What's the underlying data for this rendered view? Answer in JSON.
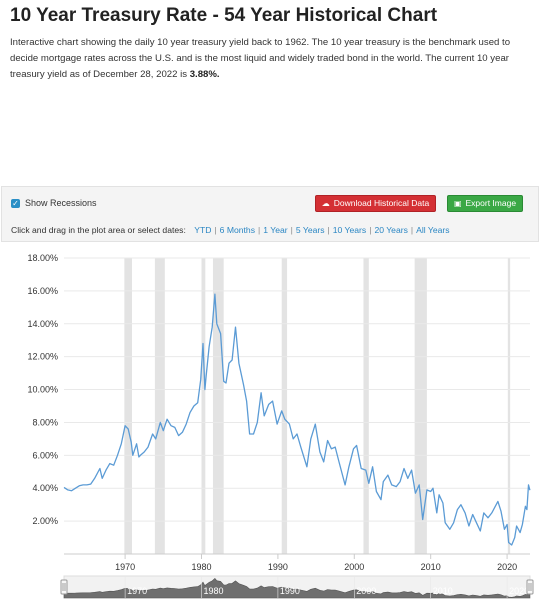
{
  "page": {
    "title": "10 Year Treasury Rate - 54 Year Historical Chart",
    "intro_text": "Interactive chart showing the daily 10 year treasury yield back to 1962. The 10 year treasury is the benchmark used to decide mortgage rates across the U.S. and is the most liquid and widely traded bond in the world. The current 10 year treasury yield as of December 28, 2022 is ",
    "current_value": "3.88%.",
    "colors": {
      "title": "#222222",
      "link": "#2a86c3",
      "download_button": "#d43034",
      "export_button": "#3aa845",
      "checkbox": "#2a8fc6",
      "series_line": "#5b9bd5",
      "recession_band": "#e3e3e3"
    }
  },
  "toolbar": {
    "show_recessions_label": "Show Recessions",
    "show_recessions_checked": true,
    "checkbox_icon": "check-icon",
    "download_label": "Download Historical Data",
    "download_icon": "cloud-download-icon",
    "export_label": "Export Image",
    "export_icon": "image-icon",
    "date_prompt": "Click and drag in the plot area or select dates:",
    "ranges": [
      "YTD",
      "6 Months",
      "1 Year",
      "5 Years",
      "10 Years",
      "20 Years",
      "All Years"
    ]
  },
  "chart_data": {
    "type": "line",
    "title": "",
    "xlabel": "",
    "ylabel": "",
    "ylim": [
      0,
      18
    ],
    "y_ticks": [
      2,
      4,
      6,
      8,
      10,
      12,
      14,
      16,
      18
    ],
    "y_tick_labels": [
      "2.00%",
      "4.00%",
      "6.00%",
      "8.00%",
      "10.00%",
      "12.00%",
      "14.00%",
      "16.00%",
      "18.00%"
    ],
    "xlim": [
      1962,
      2023
    ],
    "x_ticks": [
      1970,
      1980,
      1990,
      2000,
      2010,
      2020
    ],
    "x_tick_labels": [
      "1970",
      "1980",
      "1990",
      "2000",
      "2010",
      "2020"
    ],
    "grid": "horizontal",
    "legend": "none",
    "recessions": [
      [
        1969.9,
        1970.9
      ],
      [
        1973.9,
        1975.2
      ],
      [
        1980.0,
        1980.5
      ],
      [
        1981.5,
        1982.9
      ],
      [
        1990.5,
        1991.2
      ],
      [
        2001.2,
        2001.9
      ],
      [
        2007.9,
        2009.5
      ],
      [
        2020.1,
        2020.4
      ]
    ],
    "series": [
      {
        "values": [
          [
            1962.0,
            4.05
          ],
          [
            1962.5,
            3.9
          ],
          [
            1963.0,
            3.85
          ],
          [
            1963.5,
            4.0
          ],
          [
            1964.0,
            4.15
          ],
          [
            1964.5,
            4.2
          ],
          [
            1965.0,
            4.2
          ],
          [
            1965.5,
            4.25
          ],
          [
            1966.0,
            4.6
          ],
          [
            1966.7,
            5.2
          ],
          [
            1967.0,
            4.6
          ],
          [
            1967.5,
            5.1
          ],
          [
            1968.0,
            5.5
          ],
          [
            1968.5,
            5.4
          ],
          [
            1969.0,
            6.0
          ],
          [
            1969.5,
            6.7
          ],
          [
            1970.0,
            7.8
          ],
          [
            1970.4,
            7.6
          ],
          [
            1970.8,
            6.8
          ],
          [
            1971.0,
            6.0
          ],
          [
            1971.5,
            6.7
          ],
          [
            1971.8,
            5.9
          ],
          [
            1972.0,
            6.0
          ],
          [
            1972.5,
            6.2
          ],
          [
            1973.0,
            6.5
          ],
          [
            1973.6,
            7.3
          ],
          [
            1974.0,
            7.0
          ],
          [
            1974.6,
            8.0
          ],
          [
            1975.0,
            7.5
          ],
          [
            1975.5,
            8.2
          ],
          [
            1976.0,
            7.8
          ],
          [
            1976.5,
            7.7
          ],
          [
            1977.0,
            7.2
          ],
          [
            1977.5,
            7.4
          ],
          [
            1978.0,
            7.9
          ],
          [
            1978.5,
            8.6
          ],
          [
            1979.0,
            9.0
          ],
          [
            1979.5,
            9.2
          ],
          [
            1979.9,
            10.6
          ],
          [
            1980.2,
            12.8
          ],
          [
            1980.45,
            10.0
          ],
          [
            1980.6,
            10.8
          ],
          [
            1981.0,
            12.6
          ],
          [
            1981.4,
            13.8
          ],
          [
            1981.75,
            15.8
          ],
          [
            1982.0,
            14.0
          ],
          [
            1982.5,
            13.4
          ],
          [
            1982.9,
            10.5
          ],
          [
            1983.2,
            10.4
          ],
          [
            1983.6,
            11.6
          ],
          [
            1984.0,
            11.8
          ],
          [
            1984.45,
            13.8
          ],
          [
            1984.9,
            11.6
          ],
          [
            1985.5,
            10.3
          ],
          [
            1985.9,
            9.3
          ],
          [
            1986.3,
            7.3
          ],
          [
            1986.8,
            7.3
          ],
          [
            1987.3,
            8.0
          ],
          [
            1987.8,
            9.8
          ],
          [
            1988.2,
            8.4
          ],
          [
            1988.8,
            9.1
          ],
          [
            1989.3,
            9.3
          ],
          [
            1989.9,
            7.9
          ],
          [
            1990.5,
            8.7
          ],
          [
            1990.9,
            8.2
          ],
          [
            1991.5,
            7.9
          ],
          [
            1992.0,
            7.0
          ],
          [
            1992.5,
            7.3
          ],
          [
            1993.0,
            6.5
          ],
          [
            1993.8,
            5.3
          ],
          [
            1994.3,
            7.0
          ],
          [
            1994.9,
            7.9
          ],
          [
            1995.5,
            6.2
          ],
          [
            1996.0,
            5.6
          ],
          [
            1996.5,
            6.9
          ],
          [
            1997.0,
            6.4
          ],
          [
            1997.5,
            6.5
          ],
          [
            1998.0,
            5.6
          ],
          [
            1998.8,
            4.2
          ],
          [
            1999.3,
            5.3
          ],
          [
            1999.9,
            6.4
          ],
          [
            2000.3,
            6.6
          ],
          [
            2000.9,
            5.2
          ],
          [
            2001.5,
            5.1
          ],
          [
            2001.9,
            4.3
          ],
          [
            2002.4,
            5.3
          ],
          [
            2002.9,
            3.8
          ],
          [
            2003.5,
            3.3
          ],
          [
            2003.8,
            4.4
          ],
          [
            2004.4,
            4.8
          ],
          [
            2004.9,
            4.2
          ],
          [
            2005.5,
            4.1
          ],
          [
            2006.0,
            4.4
          ],
          [
            2006.5,
            5.2
          ],
          [
            2007.0,
            4.6
          ],
          [
            2007.5,
            5.1
          ],
          [
            2008.0,
            3.7
          ],
          [
            2008.5,
            4.2
          ],
          [
            2008.95,
            2.1
          ],
          [
            2009.5,
            3.9
          ],
          [
            2010.0,
            3.8
          ],
          [
            2010.3,
            4.0
          ],
          [
            2010.8,
            2.5
          ],
          [
            2011.1,
            3.6
          ],
          [
            2011.6,
            3.1
          ],
          [
            2011.9,
            1.9
          ],
          [
            2012.5,
            1.5
          ],
          [
            2013.0,
            1.9
          ],
          [
            2013.5,
            2.7
          ],
          [
            2013.95,
            3.0
          ],
          [
            2014.5,
            2.5
          ],
          [
            2015.0,
            1.7
          ],
          [
            2015.5,
            2.4
          ],
          [
            2016.0,
            1.9
          ],
          [
            2016.5,
            1.4
          ],
          [
            2016.95,
            2.5
          ],
          [
            2017.5,
            2.2
          ],
          [
            2018.0,
            2.5
          ],
          [
            2018.8,
            3.2
          ],
          [
            2019.2,
            2.6
          ],
          [
            2019.65,
            1.5
          ],
          [
            2020.0,
            1.8
          ],
          [
            2020.2,
            0.7
          ],
          [
            2020.6,
            0.55
          ],
          [
            2021.0,
            1.0
          ],
          [
            2021.25,
            1.7
          ],
          [
            2021.7,
            1.3
          ],
          [
            2022.0,
            1.8
          ],
          [
            2022.4,
            2.9
          ],
          [
            2022.6,
            2.7
          ],
          [
            2022.8,
            4.2
          ],
          [
            2022.99,
            3.88
          ]
        ]
      }
    ],
    "navigator": {
      "x_tick_labels": [
        "1970",
        "1980",
        "1990",
        "2000",
        "2010",
        "2020"
      ]
    }
  }
}
